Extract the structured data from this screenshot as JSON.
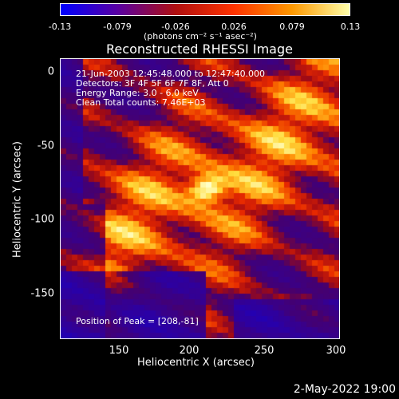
{
  "colorbar": {
    "ticks": [
      "-0.13",
      "-0.079",
      "-0.026",
      "0.026",
      "0.079",
      "0.13"
    ],
    "unit": "(photons cm⁻² s⁻¹ asec⁻²)",
    "stops": [
      "#0000ff",
      "#5a00a0",
      "#b01010",
      "#ff3300",
      "#ff9900",
      "#ffffaa"
    ]
  },
  "chart_data": {
    "type": "heatmap",
    "title": "Reconstructed RHESSI Image",
    "xlabel": "Heliocentric X (arcsec)",
    "ylabel": "Heliocentric Y (arcsec)",
    "xlim": [
      112,
      300
    ],
    "ylim": [
      -185,
      5
    ],
    "xticks": [
      "150",
      "200",
      "250",
      "300"
    ],
    "yticks": [
      "0",
      "-50",
      "-100",
      "-150"
    ],
    "annotations": [
      "21-Jun-2003 12:45:48.000 to 12:47:40.000",
      "Detectors: 3F 4F 5F 6F 7F 8F, Att 0",
      "Energy Range: 3.0 - 6.0 keV",
      "Clean     Total counts: 7.46E+03"
    ],
    "peak_label": "Position of Peak = [208,-81]",
    "peak": {
      "x": 208,
      "y": -81
    }
  },
  "footer": {
    "date": "2-May-2022 19:00"
  }
}
